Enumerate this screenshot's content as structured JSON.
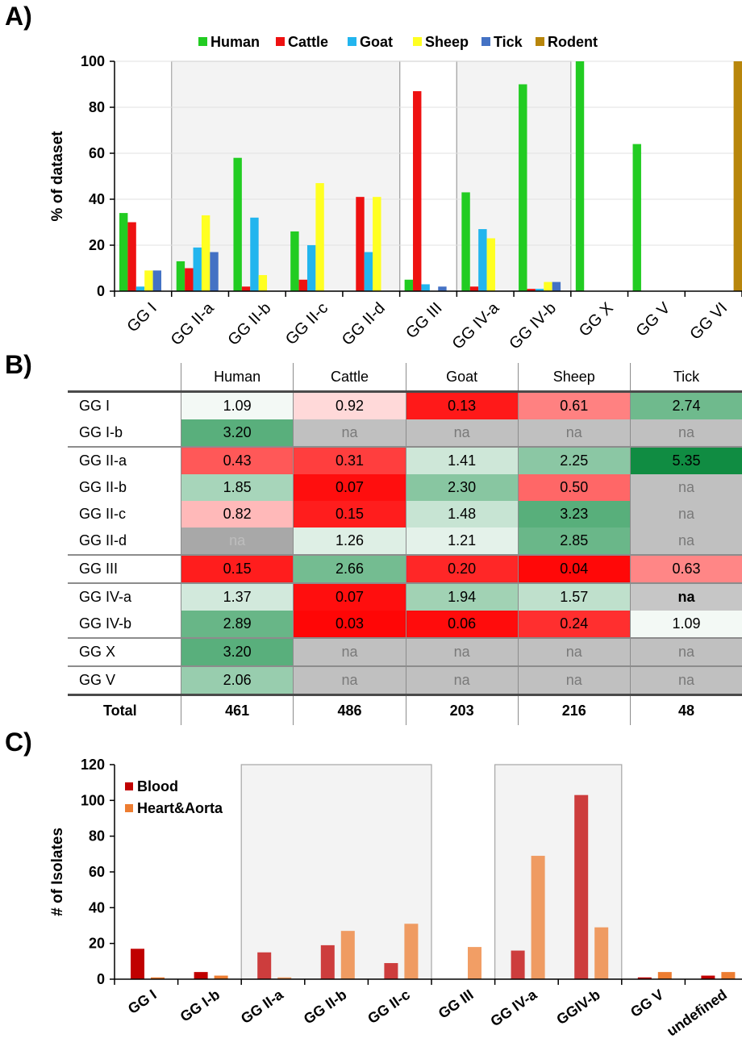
{
  "panel_labels": {
    "a": "A)",
    "b": "B)",
    "c": "C)"
  },
  "chart_data": [
    {
      "id": "A",
      "type": "bar",
      "ylabel": "% of dataset",
      "xlabel": "",
      "ylim": [
        0,
        100
      ],
      "yticks": [
        0,
        20,
        40,
        60,
        80,
        100
      ],
      "grid": true,
      "legend_position": "top",
      "categories": [
        "GG I",
        "GG II-a",
        "GG II-b",
        "GG II-c",
        "GG II-d",
        "GG III",
        "GG IV-a",
        "GG IV-b",
        "GG X",
        "GG V",
        "GG VI"
      ],
      "series": [
        {
          "name": "Human",
          "color": "#22cc22",
          "values": [
            34,
            13,
            58,
            26,
            0,
            5,
            43,
            90,
            100,
            64,
            0
          ]
        },
        {
          "name": "Cattle",
          "color": "#ee1111",
          "values": [
            30,
            10,
            2,
            5,
            41,
            87,
            2,
            1,
            0,
            0,
            0
          ]
        },
        {
          "name": "Goat",
          "color": "#22b5ee",
          "values": [
            2,
            19,
            32,
            20,
            17,
            3,
            27,
            1,
            0,
            0,
            0
          ]
        },
        {
          "name": "Sheep",
          "color": "#ffff22",
          "values": [
            9,
            33,
            7,
            47,
            41,
            0,
            23,
            4,
            0,
            0,
            0
          ]
        },
        {
          "name": "Tick",
          "color": "#4472c4",
          "values": [
            9,
            17,
            0,
            0,
            0,
            2,
            0,
            4,
            0,
            0,
            0
          ]
        },
        {
          "name": "Rodent",
          "color": "#b8860b",
          "values": [
            0,
            0,
            0,
            0,
            0,
            0,
            0,
            0,
            0,
            0,
            100
          ]
        }
      ]
    },
    {
      "id": "B",
      "type": "table",
      "columns": [
        "Human",
        "Cattle",
        "Goat",
        "Sheep",
        "Tick"
      ],
      "rows": [
        {
          "label": "GG I",
          "values": [
            "1.09",
            "0.92",
            "0.13",
            "0.61",
            "2.74"
          ],
          "group_end": false
        },
        {
          "label": "GG I-b",
          "values": [
            "3.20",
            "na",
            "na",
            "na",
            "na"
          ],
          "group_end": true
        },
        {
          "label": "GG II-a",
          "values": [
            "0.43",
            "0.31",
            "1.41",
            "2.25",
            "5.35"
          ],
          "group_end": false
        },
        {
          "label": "GG II-b",
          "values": [
            "1.85",
            "0.07",
            "2.30",
            "0.50",
            "na"
          ],
          "group_end": false
        },
        {
          "label": "GG II-c",
          "values": [
            "0.82",
            "0.15",
            "1.48",
            "3.23",
            "na"
          ],
          "group_end": false
        },
        {
          "label": "GG II-d",
          "values": [
            "na",
            "1.26",
            "1.21",
            "2.85",
            "na"
          ],
          "group_end": true
        },
        {
          "label": "GG III",
          "values": [
            "0.15",
            "2.66",
            "0.20",
            "0.04",
            "0.63"
          ],
          "group_end": true
        },
        {
          "label": "GG IV-a",
          "values": [
            "1.37",
            "0.07",
            "1.94",
            "1.57",
            "na"
          ],
          "group_end": false
        },
        {
          "label": "GG IV-b",
          "values": [
            "2.89",
            "0.03",
            "0.06",
            "0.24",
            "1.09"
          ],
          "group_end": true
        },
        {
          "label": "GG X",
          "values": [
            "3.20",
            "na",
            "na",
            "na",
            "na"
          ],
          "group_end": true
        },
        {
          "label": "GG V",
          "values": [
            "2.06",
            "na",
            "na",
            "na",
            "na"
          ],
          "group_end": false
        }
      ],
      "total": {
        "label": "Total",
        "values": [
          "461",
          "486",
          "203",
          "216",
          "48"
        ]
      }
    },
    {
      "id": "C",
      "type": "bar",
      "ylabel": "# of Isolates",
      "xlabel": "",
      "ylim": [
        0,
        120
      ],
      "yticks": [
        0,
        20,
        40,
        60,
        80,
        100,
        120
      ],
      "grid": false,
      "legend_position": "top-left",
      "categories": [
        "GG I",
        "GG I-b",
        "GG II-a",
        "GG II-b",
        "GG II-c",
        "GG III",
        "GG IV-a",
        "GGIV-b",
        "GG V",
        "undefined"
      ],
      "series": [
        {
          "name": "Blood",
          "color": "#c00000",
          "values": [
            17,
            4,
            15,
            19,
            9,
            0,
            16,
            103,
            1,
            2
          ]
        },
        {
          "name": "Heart&Aorta",
          "color": "#ed7d31",
          "values": [
            1,
            2,
            1,
            27,
            31,
            18,
            69,
            29,
            4,
            4
          ]
        }
      ]
    }
  ]
}
